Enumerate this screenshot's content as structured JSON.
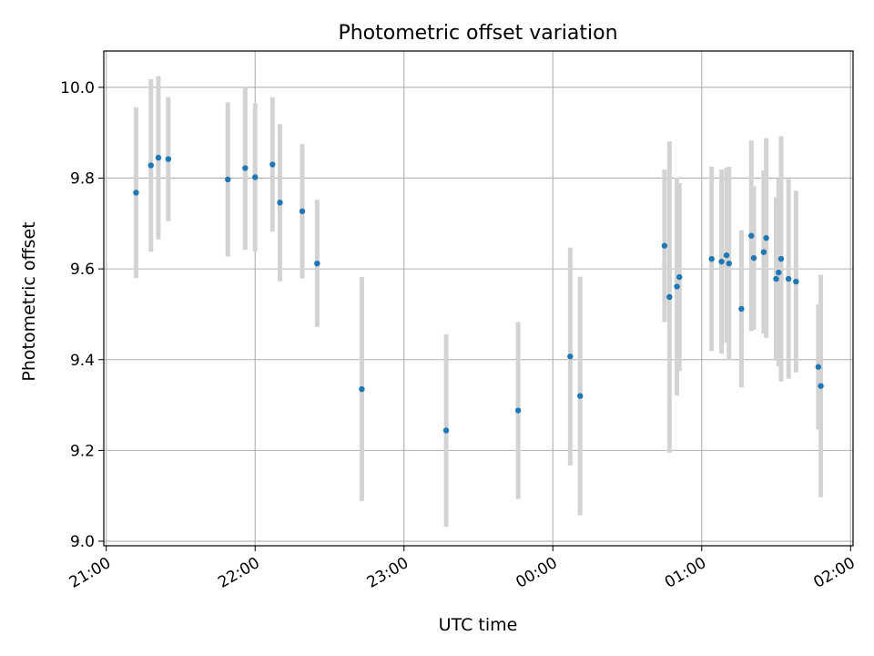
{
  "chart_data": {
    "type": "scatter",
    "title": "Photometric offset variation",
    "xlabel": "UTC time",
    "ylabel": "Photometric offset",
    "x_axis_type": "time",
    "xlim": [
      "20:59",
      "02:01"
    ],
    "ylim": [
      8.99,
      10.08
    ],
    "x_ticks": [
      "21:00",
      "22:00",
      "23:00",
      "00:00",
      "01:00",
      "02:00"
    ],
    "y_ticks": [
      "9.0",
      "9.2",
      "9.4",
      "9.6",
      "9.8",
      "10.0"
    ],
    "grid": true,
    "marker_color": "#1f77b4",
    "errorbar_color": "#d3d3d3",
    "points": [
      {
        "time": "21:12",
        "y": 9.768,
        "err": 0.188
      },
      {
        "time": "21:18",
        "y": 9.828,
        "err": 0.19
      },
      {
        "time": "21:21",
        "y": 9.845,
        "err": 0.18
      },
      {
        "time": "21:25",
        "y": 9.842,
        "err": 0.137
      },
      {
        "time": "21:49",
        "y": 9.797,
        "err": 0.17
      },
      {
        "time": "21:56",
        "y": 9.822,
        "err": 0.18
      },
      {
        "time": "22:00",
        "y": 9.802,
        "err": 0.163
      },
      {
        "time": "22:07",
        "y": 9.83,
        "err": 0.148
      },
      {
        "time": "22:10",
        "y": 9.746,
        "err": 0.173
      },
      {
        "time": "22:19",
        "y": 9.727,
        "err": 0.148
      },
      {
        "time": "22:25",
        "y": 9.612,
        "err": 0.14
      },
      {
        "time": "22:43",
        "y": 9.335,
        "err": 0.247
      },
      {
        "time": "23:17",
        "y": 9.244,
        "err": 0.212
      },
      {
        "time": "23:46",
        "y": 9.288,
        "err": 0.195
      },
      {
        "time": "00:07",
        "y": 9.407,
        "err": 0.24
      },
      {
        "time": "00:11",
        "y": 9.32,
        "err": 0.263
      },
      {
        "time": "00:45",
        "y": 9.651,
        "err": 0.168
      },
      {
        "time": "00:47",
        "y": 9.538,
        "err": 0.343
      },
      {
        "time": "00:50",
        "y": 9.561,
        "err": 0.24
      },
      {
        "time": "00:51",
        "y": 9.582,
        "err": 0.207
      },
      {
        "time": "01:04",
        "y": 9.622,
        "err": 0.203
      },
      {
        "time": "01:08",
        "y": 9.616,
        "err": 0.203
      },
      {
        "time": "01:10",
        "y": 9.63,
        "err": 0.193
      },
      {
        "time": "01:11",
        "y": 9.612,
        "err": 0.213
      },
      {
        "time": "01:16",
        "y": 9.512,
        "err": 0.173
      },
      {
        "time": "01:20",
        "y": 9.673,
        "err": 0.21
      },
      {
        "time": "01:21",
        "y": 9.624,
        "err": 0.158
      },
      {
        "time": "01:25",
        "y": 9.637,
        "err": 0.18
      },
      {
        "time": "01:26",
        "y": 9.668,
        "err": 0.22
      },
      {
        "time": "01:30",
        "y": 9.578,
        "err": 0.18
      },
      {
        "time": "01:31",
        "y": 9.592,
        "err": 0.207
      },
      {
        "time": "01:32",
        "y": 9.622,
        "err": 0.27
      },
      {
        "time": "01:35",
        "y": 9.578,
        "err": 0.22
      },
      {
        "time": "01:38",
        "y": 9.572,
        "err": 0.2
      },
      {
        "time": "01:47",
        "y": 9.384,
        "err": 0.138
      },
      {
        "time": "01:48",
        "y": 9.342,
        "err": 0.245
      }
    ]
  }
}
